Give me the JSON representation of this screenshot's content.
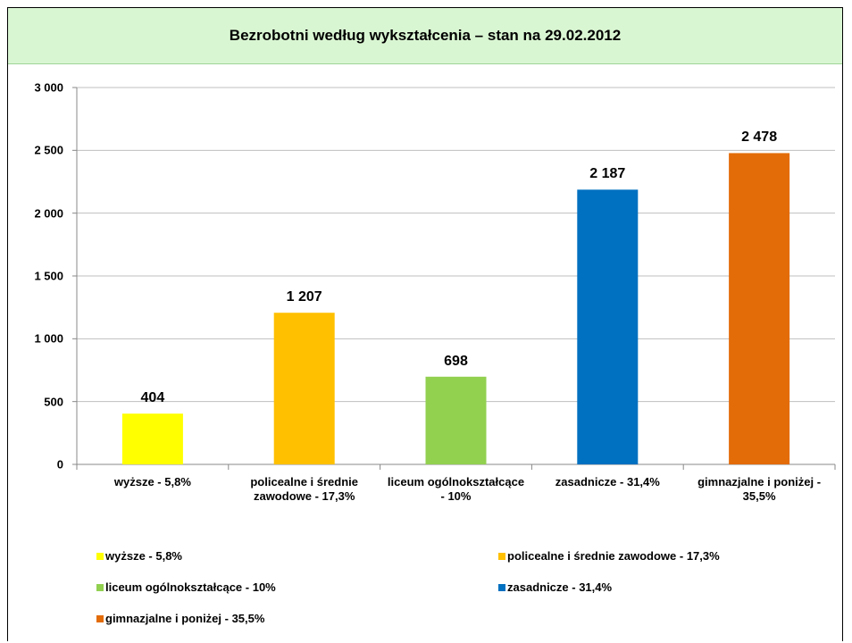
{
  "chart_data": {
    "type": "bar",
    "title": "Bezrobotni według wykształcenia – stan na 29.02.2012",
    "categories": [
      "wyższe - 5,8%",
      "policealne i średnie zawodowe - 17,3%",
      "liceum ogólnokształcące - 10%",
      "zasadnicze - 31,4%",
      "gimnazjalne i poniżej - 35,5%"
    ],
    "values": [
      404,
      1207,
      698,
      2187,
      2478
    ],
    "value_labels": [
      "404",
      "1 207",
      "698",
      "2 187",
      "2 478"
    ],
    "colors": [
      "#ffff00",
      "#ffc000",
      "#92d050",
      "#0070c0",
      "#e36c09"
    ],
    "ylim": [
      0,
      3000
    ],
    "yticks": [
      0,
      500,
      {
        "value": 1000,
        "label": "1 000"
      },
      {
        "value": 1500,
        "label": "1 500"
      },
      {
        "value": 2000,
        "label": "2 000"
      },
      {
        "value": 2500,
        "label": "2 500"
      },
      {
        "value": 3000,
        "label": "3 000"
      }
    ],
    "grid": true,
    "legend": "bottom"
  }
}
